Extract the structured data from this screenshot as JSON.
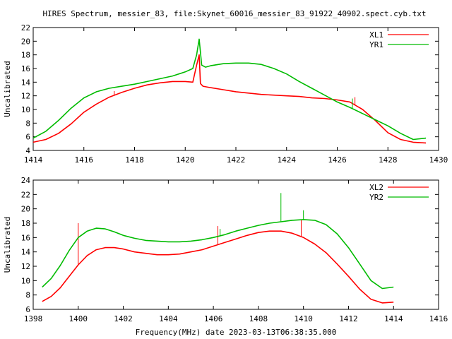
{
  "chart_data": [
    {
      "type": "line",
      "title": "HIRES Spectrum, messier_83, file:Skynet_60016_messier_83_91922_40902.spect.cyb.txt",
      "xlabel": "",
      "ylabel": "Uncalibrated",
      "xlim": [
        1414,
        1430
      ],
      "ylim": [
        4,
        22
      ],
      "xticks": [
        1414,
        1416,
        1418,
        1420,
        1422,
        1424,
        1426,
        1428,
        1430
      ],
      "yticks": [
        4,
        6,
        8,
        10,
        12,
        14,
        16,
        18,
        20,
        22
      ],
      "legend": "top-right",
      "grid": false,
      "series": [
        {
          "name": "XL1",
          "color": "#ff0000",
          "x": [
            1414.0,
            1414.5,
            1415.0,
            1415.5,
            1416.0,
            1416.5,
            1417.0,
            1417.5,
            1418.0,
            1418.5,
            1419.0,
            1419.5,
            1420.0,
            1420.3,
            1420.45,
            1420.55,
            1420.6,
            1420.7,
            1421.0,
            1421.5,
            1422.0,
            1422.5,
            1423.0,
            1423.5,
            1424.0,
            1424.5,
            1425.0,
            1425.5,
            1426.0,
            1426.5,
            1427.0,
            1427.5,
            1428.0,
            1428.5,
            1429.0,
            1429.5
          ],
          "y": [
            5.2,
            5.6,
            6.5,
            7.9,
            9.6,
            10.8,
            11.8,
            12.5,
            13.1,
            13.6,
            13.9,
            14.1,
            14.1,
            14.0,
            16.5,
            18.0,
            13.8,
            13.4,
            13.2,
            12.9,
            12.6,
            12.4,
            12.2,
            12.1,
            12.0,
            11.9,
            11.7,
            11.6,
            11.4,
            11.1,
            10.0,
            8.4,
            6.6,
            5.6,
            5.2,
            5.1
          ],
          "spikes": [
            [
              1417.2,
              12.7
            ],
            [
              1426.7,
              11.8
            ]
          ]
        },
        {
          "name": "YR1",
          "color": "#00bb00",
          "x": [
            1414.0,
            1414.5,
            1415.0,
            1415.5,
            1416.0,
            1416.5,
            1417.0,
            1417.5,
            1418.0,
            1418.5,
            1419.0,
            1419.5,
            1420.0,
            1420.3,
            1420.45,
            1420.55,
            1420.65,
            1420.8,
            1421.0,
            1421.5,
            1422.0,
            1422.5,
            1423.0,
            1423.5,
            1424.0,
            1424.5,
            1425.0,
            1425.5,
            1426.0,
            1426.5,
            1427.0,
            1427.5,
            1428.0,
            1428.5,
            1429.0,
            1429.5
          ],
          "y": [
            5.8,
            6.8,
            8.4,
            10.2,
            11.7,
            12.6,
            13.1,
            13.4,
            13.7,
            14.1,
            14.5,
            14.9,
            15.5,
            16.0,
            18.0,
            20.3,
            16.5,
            16.2,
            16.4,
            16.7,
            16.8,
            16.8,
            16.6,
            16.0,
            15.2,
            14.1,
            13.1,
            12.1,
            11.1,
            10.3,
            9.4,
            8.5,
            7.6,
            6.5,
            5.6,
            5.8
          ],
          "spikes": [
            [
              1426.6,
              11.6
            ]
          ]
        }
      ]
    },
    {
      "type": "line",
      "title": "",
      "xlabel": "Frequency(MHz) date 2023-03-13T06:38:35.000",
      "ylabel": "Uncalibrated",
      "xlim": [
        1398,
        1416
      ],
      "ylim": [
        6,
        24
      ],
      "xticks": [
        1398,
        1400,
        1402,
        1404,
        1406,
        1408,
        1410,
        1412,
        1414,
        1416
      ],
      "yticks": [
        6,
        8,
        10,
        12,
        14,
        16,
        18,
        20,
        22,
        24
      ],
      "legend": "top-right",
      "grid": false,
      "series": [
        {
          "name": "XL2",
          "color": "#ff0000",
          "x": [
            1398.4,
            1398.8,
            1399.2,
            1399.6,
            1400.0,
            1400.4,
            1400.8,
            1401.2,
            1401.6,
            1402.0,
            1402.5,
            1403.0,
            1403.5,
            1404.0,
            1404.5,
            1405.0,
            1405.5,
            1406.0,
            1406.5,
            1407.0,
            1407.5,
            1408.0,
            1408.5,
            1409.0,
            1409.5,
            1410.0,
            1410.5,
            1411.0,
            1411.5,
            1412.0,
            1412.5,
            1413.0,
            1413.5,
            1414.0
          ],
          "y": [
            7.1,
            7.8,
            9.0,
            10.6,
            12.2,
            13.5,
            14.3,
            14.6,
            14.6,
            14.4,
            14.0,
            13.8,
            13.6,
            13.6,
            13.7,
            14.0,
            14.3,
            14.8,
            15.3,
            15.8,
            16.3,
            16.7,
            16.9,
            16.9,
            16.6,
            16.0,
            15.1,
            13.9,
            12.3,
            10.6,
            8.8,
            7.4,
            6.9,
            7.0
          ],
          "spikes": [
            [
              1400.0,
              18.0
            ],
            [
              1406.2,
              17.6
            ],
            [
              1409.9,
              18.5
            ]
          ]
        },
        {
          "name": "YR2",
          "color": "#00bb00",
          "x": [
            1398.4,
            1398.8,
            1399.2,
            1399.6,
            1400.0,
            1400.4,
            1400.8,
            1401.2,
            1401.6,
            1402.0,
            1402.5,
            1403.0,
            1403.5,
            1404.0,
            1404.5,
            1405.0,
            1405.5,
            1406.0,
            1406.5,
            1407.0,
            1407.5,
            1408.0,
            1408.5,
            1409.0,
            1409.5,
            1410.0,
            1410.5,
            1411.0,
            1411.5,
            1412.0,
            1412.5,
            1413.0,
            1413.5,
            1414.0
          ],
          "y": [
            9.1,
            10.3,
            12.1,
            14.2,
            16.0,
            16.9,
            17.3,
            17.2,
            16.8,
            16.3,
            15.9,
            15.6,
            15.5,
            15.4,
            15.4,
            15.5,
            15.7,
            16.0,
            16.4,
            16.9,
            17.3,
            17.7,
            18.0,
            18.2,
            18.4,
            18.5,
            18.4,
            17.8,
            16.5,
            14.6,
            12.3,
            10.0,
            8.9,
            9.1
          ],
          "spikes": [
            [
              1406.3,
              17.2
            ],
            [
              1409.0,
              22.2
            ],
            [
              1410.0,
              19.8
            ]
          ]
        }
      ]
    }
  ]
}
